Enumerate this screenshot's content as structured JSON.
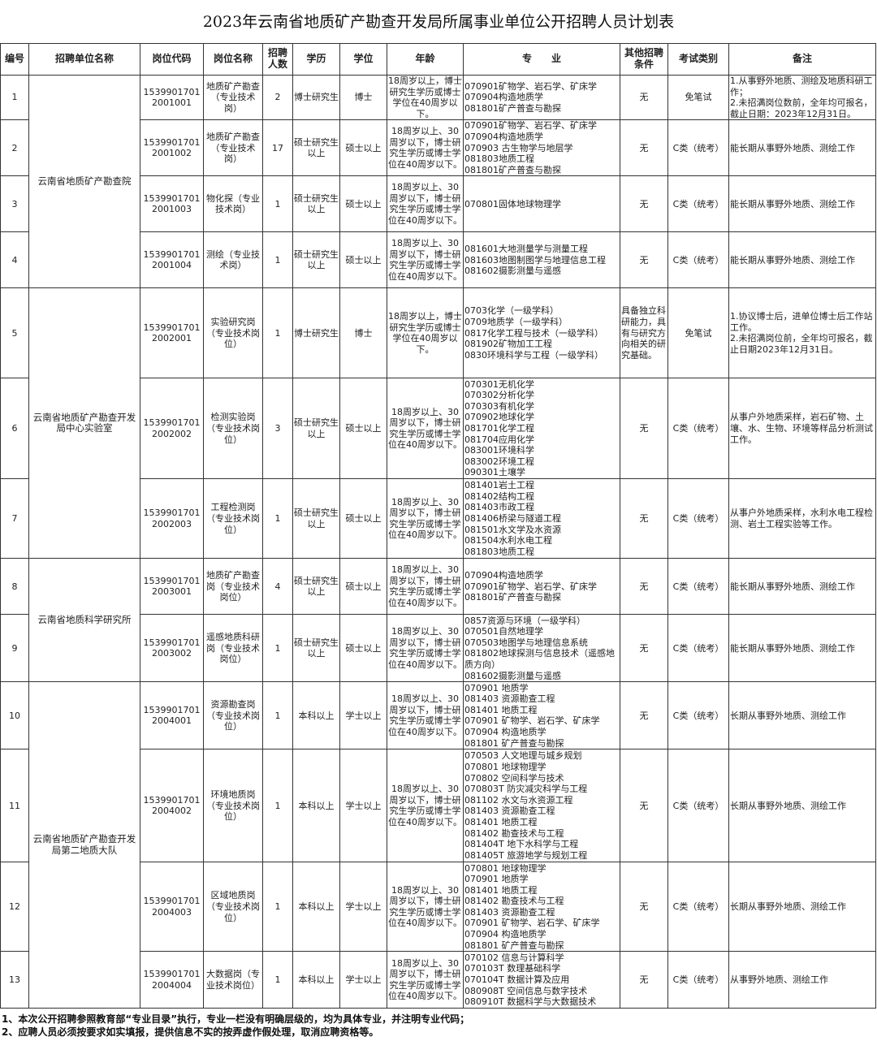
{
  "title": "2023年云南省地质矿产勘查开发局所属事业单位公开招聘人员计划表",
  "headers": [
    "编号",
    "招聘单位名称",
    "岗位代码",
    "岗位名称",
    "招聘人数",
    "学历",
    "学位",
    "年龄",
    "专　　业",
    "其他招聘条件",
    "考试类别",
    "备注"
  ],
  "units": [
    {
      "name": "云南省地质矿产勘查院",
      "rows": 4
    },
    {
      "name": "云南省地质矿产勘查开发局中心实验室",
      "rows": 3
    },
    {
      "name": "云南省地质科学研究所",
      "rows": 2
    },
    {
      "name": "云南省地质矿产勘查开发局第二地质大队",
      "rows": 4
    }
  ],
  "rows": [
    {
      "no": "1",
      "code": "15399017012001001",
      "post": "地质矿产勘查（专业技术岗）",
      "count": "2",
      "edu": "博士研究生",
      "degree": "博士",
      "age": "18周岁以上，博士研究生学历或博士学位在40周岁以下。",
      "major": "070901矿物学、岩石学、矿床学\n070904构造地质学\n081801矿产普查与勘探",
      "other": "无",
      "exam": "免笔试",
      "remark": "1.从事野外地质、测绘及地质科研工作；\n2.未招满岗位数前，全年均可报名，截止日期：2023年12月31日。"
    },
    {
      "no": "2",
      "code": "15399017012001002",
      "post": "地质矿产勘查（专业技术岗）",
      "count": "17",
      "edu": "硕士研究生以上",
      "degree": "硕士以上",
      "age": "18周岁以上、30周岁以下，博士研究生学历或博士学位在40周岁以下。",
      "major": "070901矿物学、岩石学、矿床学\n070904构造地质学\n070903 古生物学与地层学\n081803地质工程\n081801矿产普查与勘探",
      "other": "无",
      "exam": "C类（统考）",
      "remark": "能长期从事野外地质、测绘工作"
    },
    {
      "no": "3",
      "code": "15399017012001003",
      "post": "物化探（专业技术岗）",
      "count": "1",
      "edu": "硕士研究生以上",
      "degree": "硕士以上",
      "age": "18周岁以上、30周岁以下，博士研究生学历或博士学位在40周岁以下。",
      "major": "070801固体地球物理学",
      "other": "无",
      "exam": "C类（统考）",
      "remark": "能长期从事野外地质、测绘工作"
    },
    {
      "no": "4",
      "code": "15399017012001004",
      "post": "测绘（专业技术岗）",
      "count": "1",
      "edu": "硕士研究生以上",
      "degree": "硕士以上",
      "age": "18周岁以上、30周岁以下，博士研究生学历或博士学位在40周岁以下。",
      "major": "081601大地测量学与测量工程\n081603地图制图学与地理信息工程\n081602摄影测量与遥感",
      "other": "无",
      "exam": "C类（统考）",
      "remark": "能长期从事野外地质、测绘工作"
    },
    {
      "no": "5",
      "code": "15399017012002001",
      "post": "实验研究岗（专业技术岗位）",
      "count": "1",
      "edu": "博士研究生",
      "degree": "博士",
      "age": "18周岁以上，博士研究生学历或博士学位在40周岁以下。",
      "major": "0703化学（一级学科）\n0709地质学（一级学科）\n0817化学工程与技术（一级学科）\n081902矿物加工工程\n0830环境科学与工程（一级学科）",
      "other": "具备独立科研能力，具有与研究方向相关的研究基础。",
      "exam": "免笔试",
      "remark": "1.协议博士后，进单位博士后工作站工作。\n2.未招满岗位前，全年均可报名，截止日期2023年12月31日。"
    },
    {
      "no": "6",
      "code": "15399017012002002",
      "post": "检测实验岗（专业技术岗位）",
      "count": "3",
      "edu": "硕士研究生以上",
      "degree": "硕士以上",
      "age": "18周岁以上、30周岁以下，博士研究生学历或博士学位在40周岁以下。",
      "major": "070301无机化学\n070302分析化学\n070303有机化学\n070902地球化学\n081701化学工程\n081704应用化学\n083001环境科学\n083002环境工程\n090301土壤学",
      "other": "无",
      "exam": "C类（统考）",
      "remark": "从事户外地质采样，岩石矿物、土壤、水、生物、环境等样品分析测试工作。"
    },
    {
      "no": "7",
      "code": "15399017012002003",
      "post": "工程检测岗（专业技术岗位）",
      "count": "1",
      "edu": "硕士研究生以上",
      "degree": "硕士以上",
      "age": "18周岁以上、30周岁以下，博士研究生学历或博士学位在40周岁以下。",
      "major": "081401岩土工程\n081402结构工程\n081403市政工程\n081406桥梁与隧道工程\n081501水文学及水资源\n081504水利水电工程\n081803地质工程",
      "other": "无",
      "exam": "C类（统考）",
      "remark": "从事户外地质采样，水利水电工程检测、岩土工程实验等工作。"
    },
    {
      "no": "8",
      "code": "15399017012003001",
      "post": "地质矿产勘查岗（专业技术岗位）",
      "count": "4",
      "edu": "硕士研究生以上",
      "degree": "硕士以上",
      "age": "18周岁以上、30周岁以下，博士研究生学历或博士学位在40周岁以下。",
      "major": "070904构造地质学\n070901矿物学、岩石学、矿床学\n081801矿产普查与勘探",
      "other": "无",
      "exam": "C类（统考）",
      "remark": "能长期从事野外地质、测绘工作"
    },
    {
      "no": "9",
      "code": "15399017012003002",
      "post": "遥感地质科研岗（专业技术岗位）",
      "count": "1",
      "edu": "硕士研究生以上",
      "degree": "硕士以上",
      "age": "18周岁以上、30周岁以下，博士研究生学历或博士学位在40周岁以下。",
      "major": "0857资源与环境（一级学科）\n070501自然地理学\n070503地图学与地理信息系统\n081802地球探测与信息技术（遥感地质方向）\n081602摄影测量与遥感",
      "other": "无",
      "exam": "C类（统考）",
      "remark": "能长期从事野外地质、测绘工作"
    },
    {
      "no": "10",
      "code": "15399017012004001",
      "post": "资源勘查岗（专业技术岗位）",
      "count": "1",
      "edu": "本科以上",
      "degree": "学士以上",
      "age": "18周岁以上、30周岁以下，博士研究生学历或博士学位在40周岁以下。",
      "major": "070901  地质学\n081403  资源勘查工程\n081401  地质工程\n070901  矿物学、岩石学、矿床学\n070904  构造地质学\n081801  矿产普查与勘探",
      "other": "无",
      "exam": "C类（统考）",
      "remark": "长期从事野外地质、测绘工作"
    },
    {
      "no": "11",
      "code": "15399017012004002",
      "post": "环境地质岗（专业技术岗位）",
      "count": "1",
      "edu": "本科以上",
      "degree": "学士以上",
      "age": "18周岁以上、30周岁以下，博士研究生学历或博士学位在40周岁以下。",
      "major": "070503  人文地理与城乡规划\n070801  地球物理学\n070802  空间科学与技术\n070803T  防灾减灾科学与工程\n081102  水文与水资源工程\n081403  资源勘查工程\n081401  地质工程\n081402  勘查技术与工程\n081404T  地下水科学与工程\n081405T  旅游地学与规划工程",
      "other": "无",
      "exam": "C类（统考）",
      "remark": "长期从事野外地质、测绘工作"
    },
    {
      "no": "12",
      "code": "15399017012004003",
      "post": "区域地质岗（专业技术岗位）",
      "count": "1",
      "edu": "本科以上",
      "degree": "学士以上",
      "age": "18周岁以上、30周岁以下，博士研究生学历或博士学位在40周岁以下。",
      "major": "070801  地球物理学\n070901  地质学\n081401  地质工程\n081402  勘查技术与工程\n081403  资源勘查工程\n070901  矿物学、岩石学、矿床学\n070904  构造地质学\n081801  矿产普查与勘探",
      "other": "无",
      "exam": "C类（统考）",
      "remark": "长期从事野外地质、测绘工作"
    },
    {
      "no": "13",
      "code": "15399017012004004",
      "post": "大数据岗（专业技术岗位）",
      "count": "1",
      "edu": "本科以上",
      "degree": "学士以上",
      "age": "18周岁以上、30周岁以下，博士研究生学历或博士学位在40周岁以下。",
      "major": "070102  信息与计算科学\n070103T  数理基础科学\n070104T  数据计算及应用\n080908T  空间信息与数字技术\n080910T  数据科学与大数据技术",
      "other": "无",
      "exam": "C类（统考）",
      "remark": "从事野外地质、测绘工作"
    }
  ],
  "notes": [
    "1、本次公开招聘参照教育部“专业目录”执行，专业一栏没有明确层级的，均为具体专业，并注明专业代码；",
    "2、应聘人员必须按要求如实填报，提供信息不实的按弄虚作假处理，取消应聘资格等。"
  ]
}
